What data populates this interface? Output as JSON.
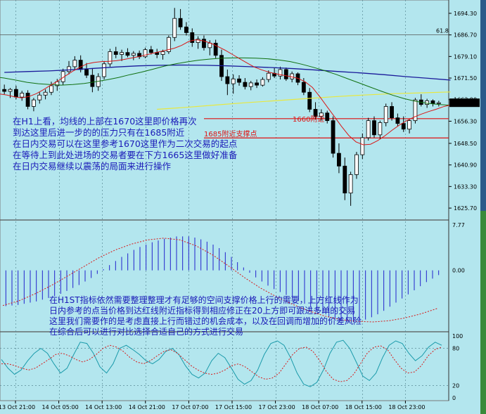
{
  "chart_data": [
    {
      "type": "candlestick",
      "title": "",
      "y_ticks": [
        "1694.30",
        "1686.70",
        "1679.10",
        "1671.50",
        "1663.90",
        "1656.30",
        "1648.50",
        "1640.90",
        "1633.30",
        "1625.70"
      ],
      "ylim": [
        1622,
        1698
      ],
      "current_price": "1662.80",
      "fib_label": "61.8",
      "fib_level": 1686.7,
      "horizontal_levels": [
        1657.2,
        1650.4
      ],
      "label_1685": "1685附近支撑点",
      "label_1660": "1660附近",
      "x_ticks": [
        "13 Oct 21:00",
        "14 Oct 05:00",
        "14 Oct 13:00",
        "14 Oct 21:00",
        "17 Oct 07:00",
        "17 Oct 15:00",
        "17 Oct 23:00",
        "18 Oct 07:00",
        "18 Oct 15:00",
        "18 Oct 23:00"
      ],
      "candles": [
        [
          1667.5,
          1669.2,
          1665.8,
          1666.8
        ],
        [
          1666.8,
          1668.0,
          1664.5,
          1667.5
        ],
        [
          1667.5,
          1668.8,
          1664.0,
          1664.8
        ],
        [
          1664.8,
          1667.0,
          1663.5,
          1666.2
        ],
        [
          1666.2,
          1667.2,
          1660.5,
          1661.5
        ],
        [
          1661.5,
          1664.5,
          1659.8,
          1663.8
        ],
        [
          1663.8,
          1666.5,
          1662.5,
          1665.5
        ],
        [
          1665.5,
          1667.5,
          1664.0,
          1666.5
        ],
        [
          1666.5,
          1670.2,
          1665.5,
          1668.8
        ],
        [
          1668.8,
          1671.2,
          1667.0,
          1670.2
        ],
        [
          1670.2,
          1674.8,
          1669.0,
          1673.8
        ],
        [
          1673.8,
          1677.5,
          1672.8,
          1675.5
        ],
        [
          1675.5,
          1679.2,
          1674.2,
          1677.8
        ],
        [
          1677.8,
          1679.5,
          1673.5,
          1674.5
        ],
        [
          1674.5,
          1676.8,
          1671.5,
          1672.5
        ],
        [
          1672.5,
          1675.0,
          1666.5,
          1668.5
        ],
        [
          1668.5,
          1673.2,
          1667.0,
          1672.0
        ],
        [
          1672.0,
          1677.5,
          1671.0,
          1676.5
        ],
        [
          1676.5,
          1681.8,
          1675.5,
          1680.8
        ],
        [
          1680.8,
          1682.5,
          1678.5,
          1679.8
        ],
        [
          1679.8,
          1681.5,
          1677.5,
          1680.5
        ],
        [
          1680.5,
          1682.0,
          1678.8,
          1679.5
        ],
        [
          1679.5,
          1681.0,
          1677.8,
          1680.2
        ],
        [
          1680.2,
          1681.2,
          1678.2,
          1679.0
        ],
        [
          1679.0,
          1682.2,
          1678.5,
          1681.5
        ],
        [
          1681.5,
          1682.8,
          1679.8,
          1680.5
        ],
        [
          1680.5,
          1681.8,
          1678.5,
          1679.8
        ],
        [
          1679.8,
          1681.5,
          1678.0,
          1680.8
        ],
        [
          1680.8,
          1686.5,
          1680.0,
          1685.8
        ],
        [
          1685.8,
          1696.2,
          1684.5,
          1692.5
        ],
        [
          1692.5,
          1695.8,
          1688.5,
          1689.5
        ],
        [
          1689.5,
          1691.2,
          1686.5,
          1687.5
        ],
        [
          1687.5,
          1689.0,
          1682.5,
          1684.0
        ],
        [
          1684.0,
          1686.2,
          1681.8,
          1685.2
        ],
        [
          1685.2,
          1686.5,
          1681.2,
          1682.2
        ],
        [
          1682.2,
          1684.8,
          1679.5,
          1683.8
        ],
        [
          1683.8,
          1685.0,
          1678.5,
          1679.5
        ],
        [
          1679.5,
          1681.5,
          1670.5,
          1672.0
        ],
        [
          1672.0,
          1674.5,
          1665.5,
          1669.5
        ],
        [
          1669.5,
          1672.8,
          1666.0,
          1671.2
        ],
        [
          1671.2,
          1672.5,
          1668.8,
          1670.0
        ],
        [
          1670.0,
          1671.5,
          1667.5,
          1668.5
        ],
        [
          1668.5,
          1670.5,
          1667.2,
          1669.8
        ],
        [
          1669.8,
          1671.0,
          1668.0,
          1669.0
        ],
        [
          1669.0,
          1671.8,
          1668.5,
          1671.0
        ],
        [
          1671.0,
          1674.2,
          1670.0,
          1673.2
        ],
        [
          1673.2,
          1675.2,
          1671.5,
          1672.2
        ],
        [
          1672.2,
          1675.5,
          1671.0,
          1674.5
        ],
        [
          1674.5,
          1675.2,
          1670.5,
          1671.2
        ],
        [
          1671.2,
          1673.8,
          1670.0,
          1673.0
        ],
        [
          1673.0,
          1673.5,
          1669.0,
          1670.0
        ],
        [
          1670.0,
          1671.5,
          1665.5,
          1666.5
        ],
        [
          1666.5,
          1668.0,
          1659.5,
          1660.5
        ],
        [
          1660.5,
          1663.0,
          1657.0,
          1658.0
        ],
        [
          1658.0,
          1660.5,
          1656.5,
          1659.2
        ],
        [
          1659.2,
          1660.0,
          1655.5,
          1656.5
        ],
        [
          1656.5,
          1658.0,
          1643.5,
          1645.0
        ],
        [
          1645.0,
          1648.5,
          1638.0,
          1640.5
        ],
        [
          1640.5,
          1643.5,
          1628.5,
          1631.0
        ],
        [
          1631.0,
          1638.5,
          1626.5,
          1637.5
        ],
        [
          1637.5,
          1645.5,
          1636.0,
          1644.5
        ],
        [
          1644.5,
          1652.0,
          1643.0,
          1650.5
        ],
        [
          1650.5,
          1657.5,
          1649.5,
          1656.5
        ],
        [
          1656.5,
          1658.0,
          1650.5,
          1651.5
        ],
        [
          1651.5,
          1656.5,
          1650.0,
          1655.8
        ],
        [
          1655.8,
          1662.5,
          1654.5,
          1661.5
        ],
        [
          1661.5,
          1663.0,
          1656.5,
          1657.5
        ],
        [
          1657.5,
          1659.0,
          1654.5,
          1655.5
        ],
        [
          1655.5,
          1658.0,
          1652.5,
          1653.5
        ],
        [
          1653.5,
          1657.0,
          1652.0,
          1656.5
        ],
        [
          1656.5,
          1664.5,
          1655.5,
          1663.8
        ],
        [
          1663.8,
          1665.8,
          1661.5,
          1662.2
        ],
        [
          1662.2,
          1664.2,
          1661.0,
          1663.5
        ],
        [
          1663.5,
          1664.0,
          1661.5,
          1662.5
        ],
        [
          1662.5,
          1663.5,
          1661.5,
          1662.8
        ]
      ],
      "ma_red": [
        1665.8,
        1665.9,
        1665.5,
        1664.9,
        1664.5,
        1665.0,
        1666.0,
        1667.4,
        1669.0,
        1670.5,
        1672.2,
        1673.9,
        1675.3,
        1676.5,
        1677.0,
        1677.3,
        1677.4,
        1677.6,
        1678.0,
        1678.5,
        1679.0,
        1679.6,
        1680.2,
        1680.8,
        1681.4,
        1682.0,
        1683.0,
        1684.4,
        1685.0,
        1684.6,
        1683.8,
        1682.6,
        1681.3,
        1679.8,
        1678.3,
        1676.8,
        1675.4,
        1674.4,
        1673.6,
        1673.0,
        1672.5,
        1672.0,
        1671.4,
        1670.2,
        1668.2,
        1665.0,
        1661.5,
        1658.0,
        1654.5,
        1651.3,
        1649.0,
        1648.0,
        1648.2,
        1649.5,
        1651.2,
        1653.2,
        1655.0,
        1656.5,
        1657.8,
        1658.8,
        1659.7,
        1660.5,
        1661.4,
        1662.0
      ],
      "ma_green": [
        1672.0,
        1671.5,
        1670.8,
        1670.0,
        1669.5,
        1669.2,
        1669.0,
        1669.2,
        1669.6,
        1670.2,
        1670.9,
        1671.7,
        1672.7,
        1673.6,
        1674.6,
        1675.7,
        1676.5,
        1677.2,
        1677.8,
        1678.2,
        1678.5,
        1678.6,
        1678.6,
        1678.5,
        1678.3,
        1677.9,
        1677.3,
        1676.4,
        1675.3,
        1674.1,
        1672.8,
        1671.3,
        1669.8,
        1668.3,
        1666.8,
        1665.4,
        1664.2,
        1663.3,
        1662.6,
        1662.2,
        1661.9
      ],
      "ma_blue": [
        1673.5,
        1673.8,
        1674.0,
        1674.4,
        1674.9,
        1675.4,
        1675.8,
        1676.0,
        1676.1,
        1676.0,
        1675.8,
        1675.5,
        1675.2,
        1674.8,
        1674.3,
        1673.8,
        1673.3,
        1672.7,
        1672.0,
        1671.4,
        1670.8
      ],
      "ma_yellow": [
        1660.5,
        1661.2,
        1662.0,
        1662.8,
        1663.5,
        1664.2,
        1664.9,
        1665.5,
        1666.0,
        1666.3,
        1666.6
      ]
    },
    {
      "type": "bar",
      "title": "",
      "y_ticks": [
        "7.77",
        "0.00"
      ],
      "ylim": [
        -10,
        8
      ],
      "values": [
        -6.1,
        -6.0,
        -5.9,
        -5.7,
        -5.5,
        -5.3,
        -5.0,
        -4.7,
        -4.4,
        -4.0,
        -3.5,
        -3.0,
        -2.5,
        -1.9,
        -1.3,
        -0.6,
        0.2,
        0.9,
        1.6,
        2.3,
        2.9,
        3.5,
        4.0,
        4.4,
        4.8,
        5.1,
        5.4,
        5.6,
        5.8,
        5.8,
        5.8,
        5.6,
        5.3,
        4.9,
        4.4,
        3.8,
        3.1,
        2.3,
        1.4,
        0.5,
        -0.4,
        -1.2,
        -1.9,
        -2.6,
        -3.2,
        -3.7,
        -4.2,
        -4.7,
        -5.2,
        -5.7,
        -6.3,
        -6.9,
        -7.4,
        -7.9,
        -8.3,
        -8.6,
        -8.8,
        -8.8,
        -8.7,
        -8.4,
        -8.0,
        -7.5,
        -6.9,
        -6.2,
        -5.5,
        -4.8,
        -4.1,
        -3.4,
        -2.7,
        -2.0,
        -1.4,
        -0.8
      ],
      "signal": [
        -6.0,
        -5.2,
        -4.0,
        -2.6,
        -1.0,
        0.6,
        2.2,
        3.5,
        4.5,
        5.2,
        5.5,
        5.2,
        4.2,
        2.7,
        0.8,
        -1.2,
        -3.0,
        -4.5,
        -5.8,
        -6.9,
        -7.8,
        -8.4,
        -8.7,
        -8.8,
        -8.6,
        -8.1,
        -7.4,
        -6.5
      ]
    },
    {
      "type": "line",
      "title": "",
      "y_ticks": [
        "100",
        "80",
        "20",
        "0"
      ],
      "ylim": [
        0,
        100
      ],
      "series": [
        {
          "values": [
            62,
            48,
            38,
            45,
            60,
            72,
            80,
            72,
            55,
            40,
            48,
            70,
            90,
            88,
            72,
            50,
            40,
            55,
            80,
            85,
            78,
            70,
            60,
            55,
            62,
            75,
            80,
            70,
            52,
            38,
            32,
            40,
            60,
            72,
            65,
            48,
            30,
            22,
            28,
            45,
            70,
            88,
            92,
            85,
            65,
            40,
            22,
            18,
            25,
            45,
            72,
            90,
            93,
            80,
            58,
            35,
            28,
            40,
            65,
            85,
            92,
            88,
            72,
            60,
            68,
            82,
            90,
            85
          ]
        },
        {
          "values": [
            55,
            55,
            52,
            48,
            45,
            48,
            55,
            62,
            70,
            72,
            68,
            62,
            58,
            62,
            70,
            80,
            85,
            82,
            75,
            65,
            58,
            55,
            60,
            68,
            75,
            78,
            72,
            62,
            52,
            45,
            40,
            38,
            40,
            45,
            52,
            55,
            50,
            42,
            34,
            30,
            32,
            40,
            55,
            70,
            80,
            82,
            75,
            60,
            42,
            30,
            26,
            28,
            38,
            55,
            72,
            82,
            84,
            78,
            62,
            48,
            40,
            42,
            52,
            68,
            78,
            82
          ]
        }
      ]
    }
  ],
  "annotations": {
    "h1_analysis": [
      "在H1上看，均线的上部在1670这里即价格再次",
      "到达这里后进一步的的压力只有在1685附近",
      "在日内交易可以在这里参考1670这里作为二次交易的起点",
      "在等待上到此处进场的交易者要在下方1665这里做好准备",
      "在日内交易继续以震荡的局面来进行操作"
    ],
    "h1st_analysis": [
      "在H1ST指标依然需要整理整理才有足够的空间支撑价格上行的需要，上方红线作为",
      "日内参考的点当价格到达红线附近指标得到相应修正在20上方即可跟进多单的交易",
      "这里我们需要作的是考虑直接上行而错过的机会成本，以及在回调而增加的价差风险",
      "在综合后可以进行对比选择合适自己的方式进行交易"
    ]
  }
}
